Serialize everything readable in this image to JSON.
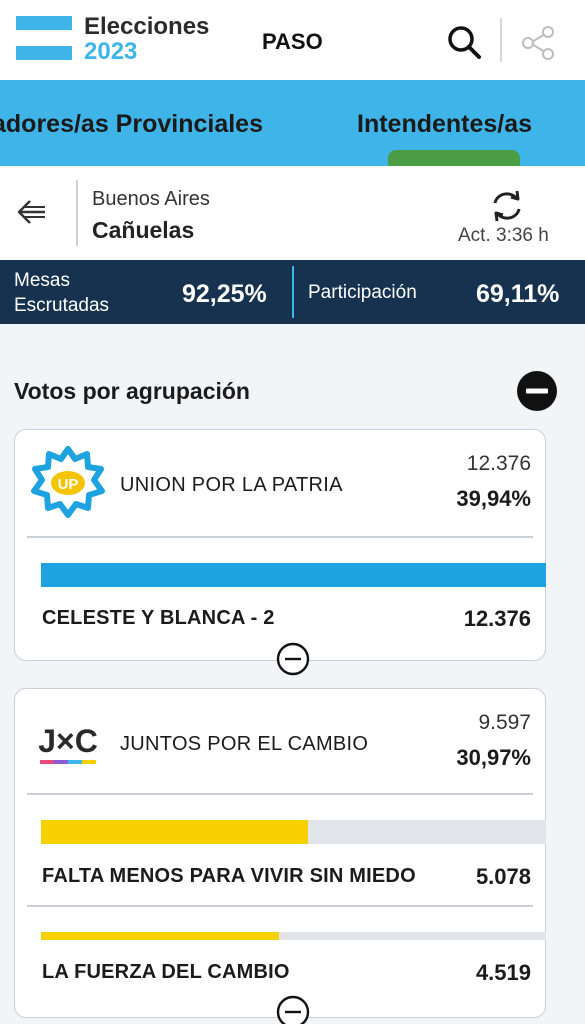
{
  "header": {
    "brand_line1": "Elecciones",
    "brand_line2": "2023",
    "election": "PASO",
    "brand_color": "#3fb4e8",
    "icons": [
      "search-icon",
      "share-icon"
    ]
  },
  "tabs": [
    {
      "label": "adores/as Provinciales",
      "active": false
    },
    {
      "label": "Intendentes/as",
      "active": true
    }
  ],
  "location": {
    "province": "Buenos Aires",
    "municipality": "Cañuelas",
    "updated": "Act. 3:36 h"
  },
  "stats": {
    "mesas_label_1": "Mesas",
    "mesas_label_2": "Escrutadas",
    "mesas_value": "92,25%",
    "participation_label": "Participación",
    "participation_value": "69,11%"
  },
  "section": {
    "title": "Votos por agrupación"
  },
  "parties": [
    {
      "name": "UNION POR LA PATRIA",
      "votes": "12.376",
      "percent": "39,94%",
      "color": "#1ea3e0",
      "logo_text": "UP",
      "lists": [
        {
          "name": "CELESTE Y BLANCA - 2",
          "votes": "12.376",
          "share": 1.0
        }
      ]
    },
    {
      "name": "JUNTOS POR EL CAMBIO",
      "votes": "9.597",
      "percent": "30,97%",
      "color": "#f7d000",
      "logo_text": "J×C",
      "lists": [
        {
          "name": "FALTA MENOS PARA VIVIR SIN MIEDO",
          "votes": "5.078",
          "share": 0.529
        },
        {
          "name": "LA FUERZA DEL CAMBIO",
          "votes": "4.519",
          "share": 0.471
        }
      ]
    }
  ]
}
